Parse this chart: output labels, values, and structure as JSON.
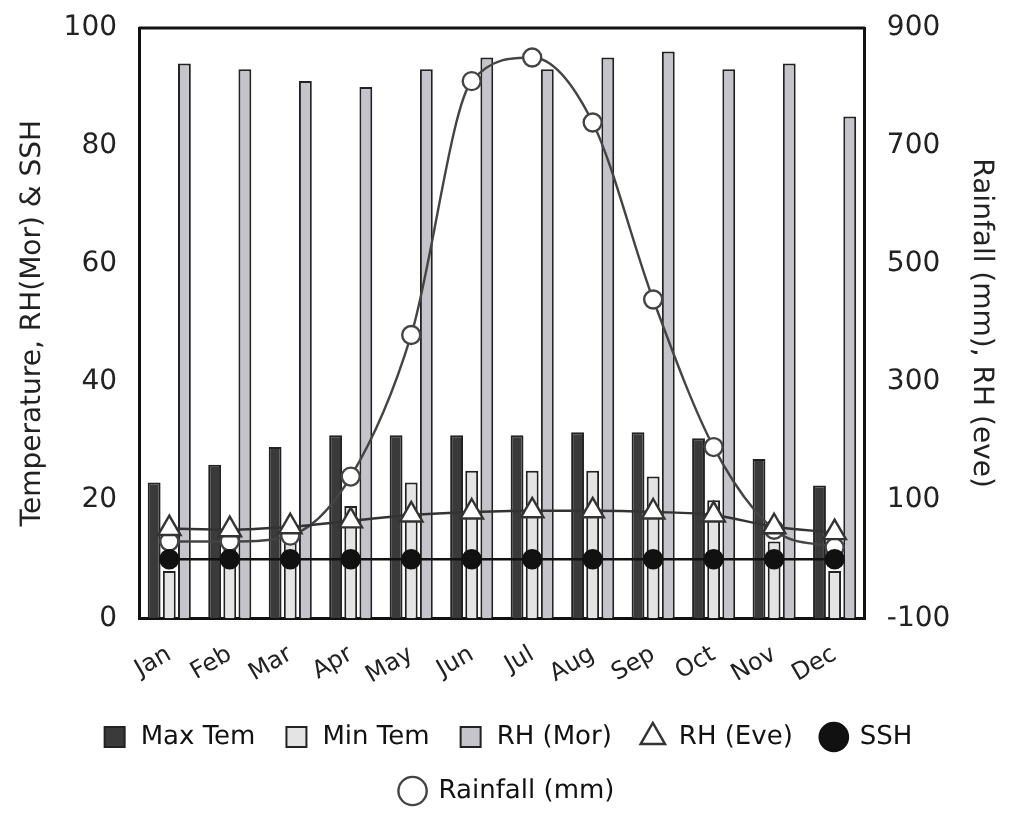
{
  "chart_data": {
    "type": "bar",
    "ylabel": "Temperature, RH(Mor) & SSH",
    "y2label": "Rainfall (mm), RH (eve)",
    "categories": [
      "Jan",
      "Feb",
      "Mar",
      "Apr",
      "May",
      "Jun",
      "Jul",
      "Aug",
      "Sep",
      "Oct",
      "Nov",
      "Dec"
    ],
    "ylim": [
      0,
      100
    ],
    "yticks": [
      0,
      20,
      40,
      60,
      80,
      100
    ],
    "y2lim": [
      -100,
      900
    ],
    "y2ticks": [
      -100,
      100,
      300,
      500,
      700,
      900
    ],
    "grid": false,
    "legend": "bottom",
    "series": [
      {
        "name": "Max Tem",
        "color": "#3a3a3a",
        "values": [
          23,
          26,
          29,
          31,
          31,
          31,
          31,
          31.5,
          31.5,
          30.5,
          27,
          22.5
        ]
      },
      {
        "name": "Min Tem",
        "color": "#e4e4e4",
        "values": [
          8,
          12,
          14,
          19,
          23,
          25,
          25,
          25,
          24,
          20,
          13,
          8
        ]
      },
      {
        "name": "RH (Mor)",
        "color": "#c4c4ca",
        "values": [
          94,
          93,
          91,
          90,
          93,
          95,
          93,
          95,
          96,
          93,
          94,
          85
        ]
      },
      {
        "name": "RH (Eve)",
        "type": "line",
        "axis": "y2",
        "marker": "triangle",
        "color": "#333333",
        "values": [
          52,
          50,
          55,
          65,
          75,
          80,
          82,
          82,
          80,
          75,
          55,
          45
        ]
      },
      {
        "name": "SSH",
        "type": "line",
        "marker": "circle",
        "color": "#111111",
        "values": [
          10,
          10,
          10,
          10,
          10,
          10,
          10,
          10,
          10,
          10,
          10,
          10
        ]
      },
      {
        "name": "Rainfall (mm)",
        "type": "line",
        "axis": "y2",
        "marker": "circle",
        "color": "#444444",
        "values": [
          30,
          30,
          40,
          140,
          380,
          810,
          850,
          740,
          440,
          190,
          50,
          20
        ]
      }
    ]
  }
}
